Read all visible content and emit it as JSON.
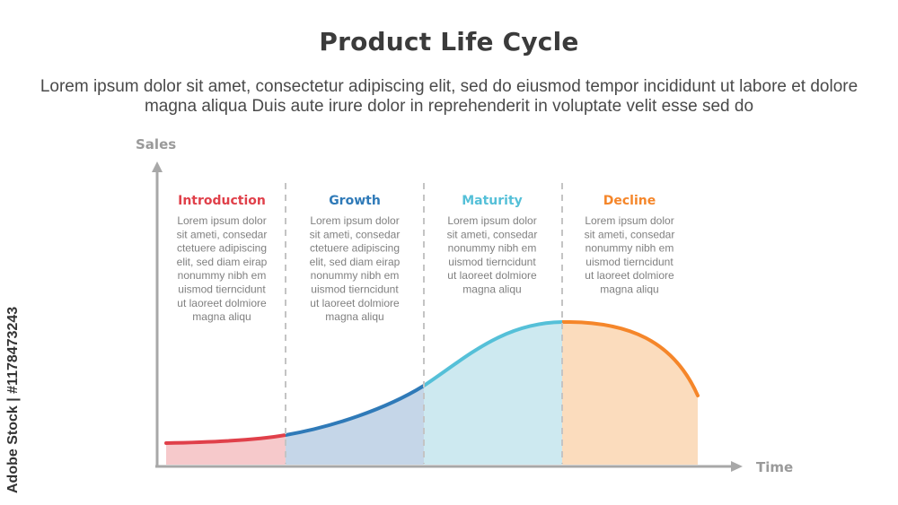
{
  "title": "Product Life Cycle",
  "subtitle": "Lorem ipsum dolor sit amet, consectetur adipiscing elit, sed do eiusmod tempor incididunt ut labore et dolore magna aliqua Duis aute irure dolor in reprehenderit in voluptate velit esse sed do",
  "watermark": "Adobe Stock | #1178473243",
  "axes": {
    "y_label": "Sales",
    "x_label": "Time"
  },
  "stages": [
    {
      "name": "Introduction",
      "color": "#e0404a",
      "fill": "#f6c9cb",
      "lines": [
        "Lorem ipsum dolor",
        "sit ameti, consedar",
        "ctetuere adipiscing",
        "elit, sed diam eirap",
        "nonummy nibh em",
        "uismod tierncidunt",
        "ut laoreet dolmiore",
        "magna aliqu"
      ]
    },
    {
      "name": "Growth",
      "color": "#2f7ab8",
      "fill": "#c5d6e8",
      "lines": [
        "Lorem ipsum dolor",
        "sit ameti, consedar",
        "ctetuere adipiscing",
        "elit, sed diam eirap",
        "nonummy nibh em",
        "uismod tierncidunt",
        "ut laoreet dolmiore",
        "magna aliqu"
      ]
    },
    {
      "name": "Maturity",
      "color": "#55c0d8",
      "fill": "#cde9f0",
      "lines": [
        "Lorem ipsum dolor",
        "sit ameti, consedar",
        "nonummy nibh em",
        "uismod tierncidunt",
        "ut laoreet dolmiore",
        "magna aliqu"
      ]
    },
    {
      "name": "Decline",
      "color": "#f5862a",
      "fill": "#fbdcbd",
      "lines": [
        "Lorem ipsum dolor",
        "sit ameti, consedar",
        "nonummy nibh em",
        "uismod tierncidunt",
        "ut laoreet dolmiore",
        "magna aliqu"
      ]
    }
  ],
  "colors": {
    "axis": "#a8a8a8",
    "divider": "#c4c4c4",
    "title": "#3b3b3b",
    "text": "#808080"
  }
}
